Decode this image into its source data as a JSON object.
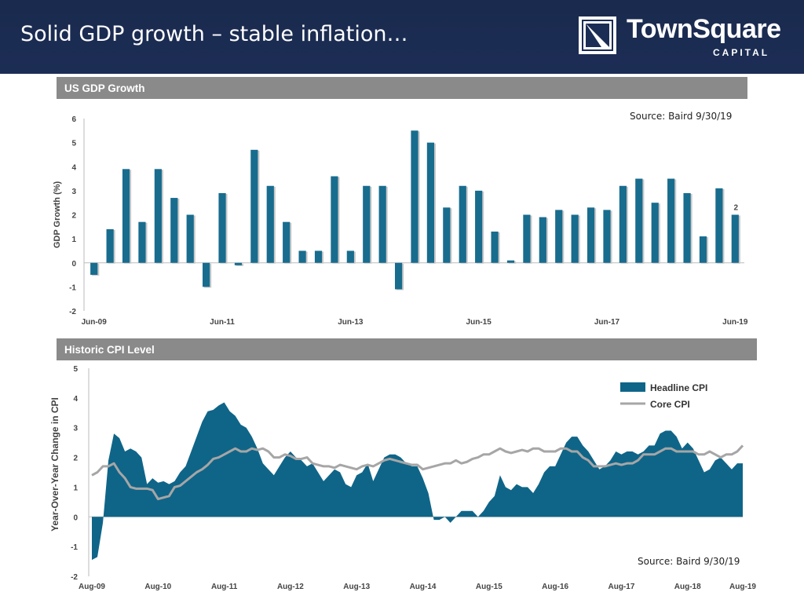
{
  "slide": {
    "title": "Solid GDP growth – stable inflation…",
    "logo_name": "TownSquare",
    "logo_sub": "CAPITAL"
  },
  "colors": {
    "header_bg": "#1c2d55",
    "bar": "#186c8e",
    "headline_area": "#0f6588",
    "core_line": "#a6a6a6",
    "panel_bar": "#8a8a8a"
  },
  "chart_data": [
    {
      "type": "bar",
      "panel_title": "US GDP Growth",
      "source": "Source: Baird 9/30/19",
      "ylabel": "GDP Growth (%)",
      "ylim": [
        -2,
        6
      ],
      "yticks": [
        "6",
        "5",
        "4",
        "3",
        "2",
        "1",
        "0",
        "-1",
        "-2"
      ],
      "xtick_labels": [
        "Jun-09",
        "Jun-11",
        "Jun-13",
        "Jun-15",
        "Jun-17",
        "Jun-19"
      ],
      "series": [
        {
          "values": [
            -0.5,
            1.4,
            3.9,
            1.7,
            3.9,
            2.7,
            2.0,
            -1.0,
            2.9,
            -0.1,
            4.7,
            3.2,
            1.7,
            0.5,
            0.5,
            3.6,
            0.5,
            3.2,
            3.2,
            -1.1,
            5.5,
            5.0,
            2.3,
            3.2,
            3.0,
            1.3,
            0.1,
            2.0,
            1.9,
            2.2,
            2.0,
            2.3,
            2.2,
            3.2,
            3.5,
            2.5,
            3.5,
            2.9,
            1.1,
            3.1,
            2.0
          ]
        }
      ],
      "data_label": "2",
      "legend": "none",
      "grid": false
    },
    {
      "type": "area",
      "panel_title": "Historic CPI Level",
      "source": "Source: Baird 9/30/19",
      "ylabel": "Year-Over-Year Change in CPI",
      "ylim": [
        -2,
        5
      ],
      "yticks": [
        "5",
        "4",
        "3",
        "2",
        "1",
        "0",
        "-1",
        "-2"
      ],
      "xtick_labels": [
        "Aug-09",
        "Aug-10",
        "Aug-11",
        "Aug-12",
        "Aug-13",
        "Aug-14",
        "Aug-15",
        "Aug-16",
        "Aug-17",
        "Aug-18",
        "Aug-19"
      ],
      "x_start": "2009-08",
      "x_end": "2019-08",
      "legend": "top-right",
      "series": [
        {
          "name": "Headline CPI",
          "style": "area",
          "values": [
            -1.45,
            -1.35,
            -0.2,
            1.9,
            2.8,
            2.65,
            2.2,
            2.3,
            2.2,
            2.0,
            1.1,
            1.3,
            1.15,
            1.2,
            1.1,
            1.2,
            1.5,
            1.7,
            2.2,
            2.7,
            3.2,
            3.55,
            3.6,
            3.75,
            3.85,
            3.55,
            3.4,
            3.1,
            3.0,
            2.7,
            2.3,
            1.8,
            1.6,
            1.4,
            1.7,
            2.0,
            2.2,
            2.0,
            1.9,
            1.7,
            1.8,
            1.5,
            1.2,
            1.4,
            1.6,
            1.5,
            1.1,
            1.0,
            1.4,
            1.5,
            1.8,
            1.2,
            1.6,
            2.0,
            2.1,
            2.1,
            2.0,
            1.8,
            1.7,
            1.7,
            1.3,
            0.8,
            -0.1,
            -0.1,
            0.0,
            -0.2,
            0.0,
            0.2,
            0.2,
            0.2,
            0.0,
            0.2,
            0.5,
            0.7,
            1.4,
            1.0,
            0.9,
            1.1,
            1.0,
            1.0,
            0.8,
            1.1,
            1.5,
            1.7,
            1.7,
            2.1,
            2.5,
            2.7,
            2.7,
            2.4,
            2.2,
            1.9,
            1.6,
            1.7,
            1.9,
            2.2,
            2.1,
            2.2,
            2.2,
            2.1,
            2.2,
            2.4,
            2.4,
            2.8,
            2.9,
            2.9,
            2.7,
            2.3,
            2.5,
            2.3,
            1.9,
            1.5,
            1.6,
            1.9,
            2.0,
            1.8,
            1.6,
            1.8,
            1.8
          ]
        },
        {
          "name": "Core CPI",
          "style": "line",
          "values": [
            1.4,
            1.5,
            1.7,
            1.7,
            1.8,
            1.5,
            1.3,
            1.0,
            0.95,
            0.95,
            0.95,
            0.9,
            0.6,
            0.65,
            0.7,
            1.0,
            1.05,
            1.2,
            1.35,
            1.5,
            1.6,
            1.75,
            1.95,
            2.0,
            2.1,
            2.2,
            2.3,
            2.2,
            2.2,
            2.3,
            2.25,
            2.3,
            2.2,
            2.0,
            2.0,
            2.1,
            2.05,
            1.95,
            1.95,
            2.0,
            1.8,
            1.75,
            1.7,
            1.7,
            1.65,
            1.75,
            1.7,
            1.65,
            1.6,
            1.7,
            1.75,
            1.7,
            1.8,
            1.9,
            1.95,
            1.9,
            1.85,
            1.8,
            1.75,
            1.75,
            1.6,
            1.65,
            1.7,
            1.75,
            1.8,
            1.8,
            1.9,
            1.8,
            1.85,
            1.95,
            2.0,
            2.1,
            2.1,
            2.2,
            2.3,
            2.2,
            2.15,
            2.2,
            2.25,
            2.2,
            2.3,
            2.3,
            2.2,
            2.2,
            2.2,
            2.3,
            2.3,
            2.2,
            2.2,
            2.0,
            1.9,
            1.7,
            1.7,
            1.7,
            1.75,
            1.8,
            1.75,
            1.8,
            1.8,
            1.9,
            2.1,
            2.1,
            2.1,
            2.2,
            2.3,
            2.3,
            2.2,
            2.2,
            2.2,
            2.2,
            2.1,
            2.1,
            2.2,
            2.1,
            2.0,
            2.1,
            2.1,
            2.2,
            2.4
          ]
        }
      ]
    }
  ]
}
